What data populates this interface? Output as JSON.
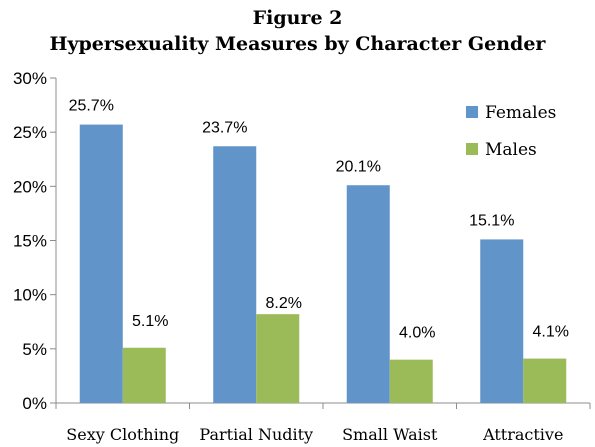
{
  "chart_data": {
    "type": "bar",
    "title": "Figure 2",
    "subtitle": "Hypersexuality Measures by Character Gender",
    "categories": [
      "Sexy Clothing",
      "Partial Nudity",
      "Small Waist",
      "Attractive"
    ],
    "series": [
      {
        "name": "Females",
        "values": [
          25.7,
          23.7,
          20.1,
          15.1
        ],
        "labels": [
          "25.7%",
          "23.7%",
          "20.1%",
          "15.1%"
        ],
        "color": "#6194c9"
      },
      {
        "name": "Males",
        "values": [
          5.1,
          8.2,
          4.0,
          4.1
        ],
        "labels": [
          "5.1%",
          "8.2%",
          "4.0%",
          "4.1%"
        ],
        "color": "#9bbb59"
      }
    ],
    "ylim": [
      0,
      30
    ],
    "yticks": [
      0,
      5,
      10,
      15,
      20,
      25,
      30
    ],
    "ytick_labels": [
      "0%",
      "5%",
      "10%",
      "15%",
      "20%",
      "25%",
      "30%"
    ],
    "xlabel": "",
    "ylabel": "",
    "grid": false,
    "legend_position": "top-right"
  }
}
